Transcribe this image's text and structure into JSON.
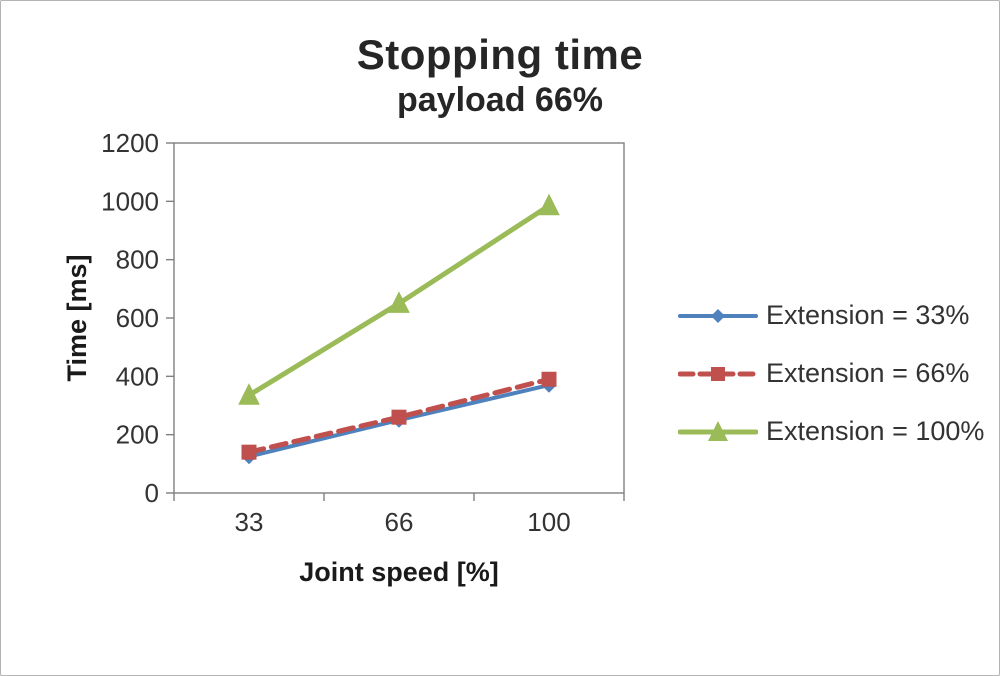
{
  "chart_data": {
    "type": "line",
    "title": "Stopping time",
    "subtitle": "payload 66%",
    "xlabel": "Joint speed [%]",
    "ylabel": "Time [ms]",
    "categories": [
      "33",
      "66",
      "100"
    ],
    "series": [
      {
        "name": "Extension = 33%",
        "values": [
          125,
          250,
          370
        ],
        "color": "#4F81BD",
        "dash": "solid",
        "marker": "diamond",
        "stroke_width": 4
      },
      {
        "name": "Extension = 66%",
        "values": [
          140,
          260,
          390
        ],
        "color": "#C0504D",
        "dash": "dashed",
        "marker": "square",
        "stroke_width": 5
      },
      {
        "name": "Extension = 100%",
        "values": [
          335,
          650,
          985
        ],
        "color": "#9BBB59",
        "dash": "solid",
        "marker": "triangle",
        "stroke_width": 5
      }
    ],
    "ylim": [
      0,
      1200
    ],
    "ytick_step": 200,
    "grid": false,
    "legend_position": "right"
  }
}
